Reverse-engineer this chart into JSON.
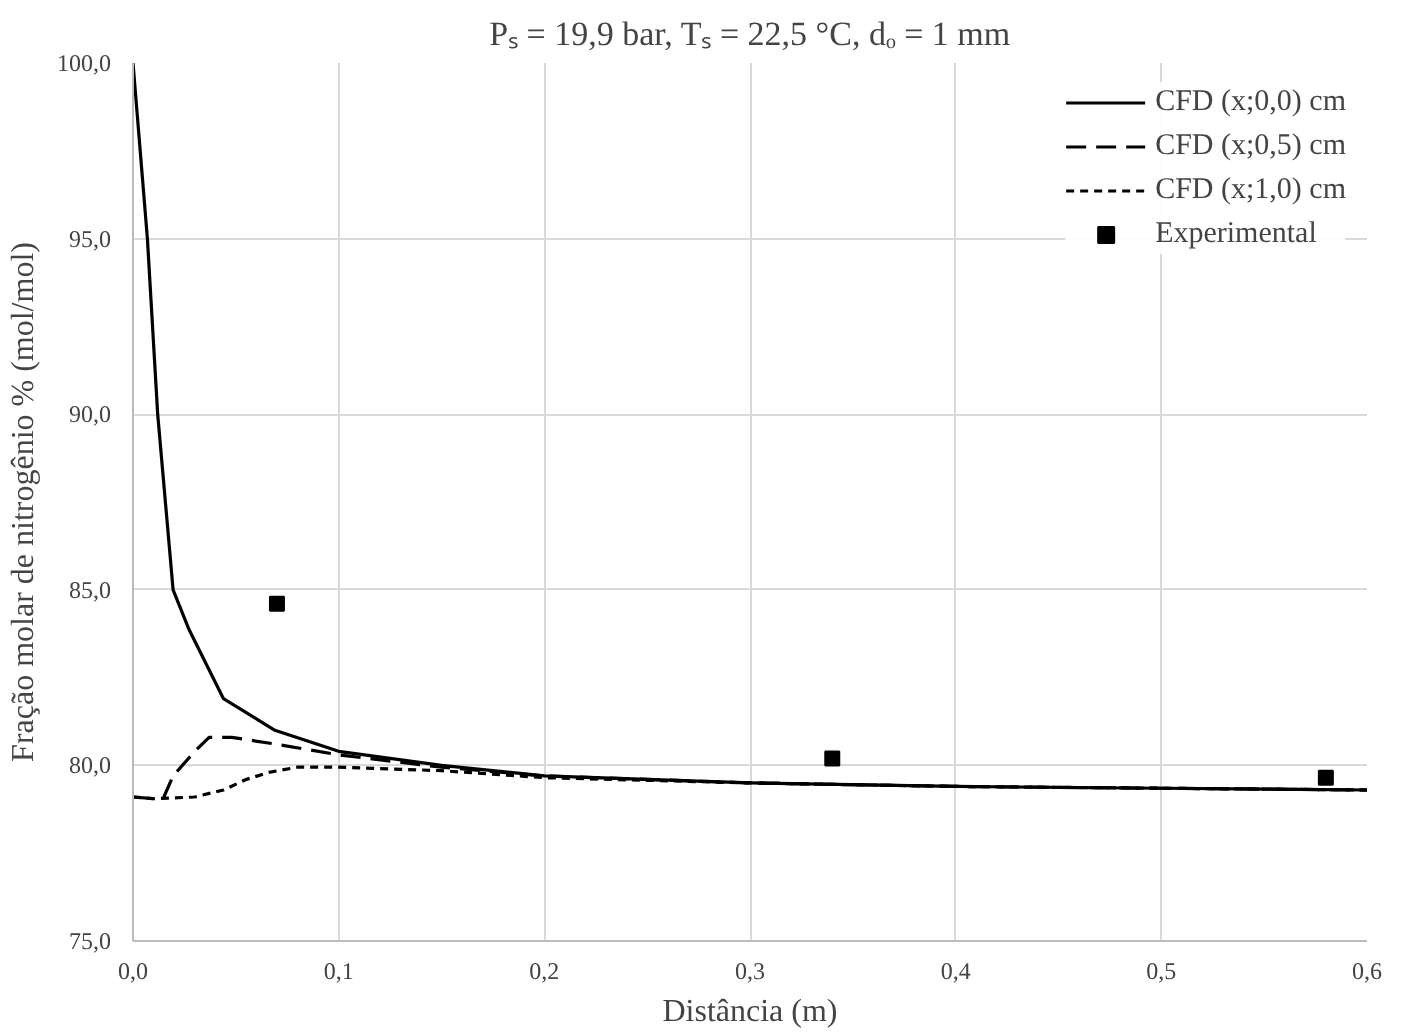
{
  "chart_data": {
    "type": "line",
    "title": "Pₛ = 19,9 bar, Tₛ = 22,5 °C, dₒ = 1 mm",
    "xlabel": "Distância (m)",
    "ylabel": "Fração molar de nitrogênio % (mol/mol)",
    "xlim": [
      0,
      0.6
    ],
    "ylim": [
      75,
      100
    ],
    "xticks": [
      {
        "value": 0,
        "label": "0,0"
      },
      {
        "value": 0.1,
        "label": "0,1"
      },
      {
        "value": 0.2,
        "label": "0,2"
      },
      {
        "value": 0.3,
        "label": "0,3"
      },
      {
        "value": 0.4,
        "label": "0,4"
      },
      {
        "value": 0.5,
        "label": "0,5"
      },
      {
        "value": 0.6,
        "label": "0,6"
      }
    ],
    "yticks": [
      {
        "value": 75,
        "label": "75,0"
      },
      {
        "value": 80,
        "label": "80,0"
      },
      {
        "value": 85,
        "label": "85,0"
      },
      {
        "value": 90,
        "label": "90,0"
      },
      {
        "value": 95,
        "label": "95,0"
      },
      {
        "value": 100,
        "label": "100,0"
      }
    ],
    "grid": true,
    "legend": "top right",
    "series": [
      {
        "name": "CFD (x;0,0) cm",
        "line_style": "solid",
        "color": "#000000",
        "x": [
          0,
          0.007,
          0.012,
          0.0195,
          0.027,
          0.044,
          0.069,
          0.1,
          0.15,
          0.2,
          0.3,
          0.4,
          0.5,
          0.6
        ],
        "values": [
          100,
          95.0,
          90.0,
          85.0,
          83.9,
          81.9,
          81.0,
          80.4,
          80.0,
          79.7,
          79.5,
          79.4,
          79.35,
          79.3
        ]
      },
      {
        "name": "CFD (x;0,5) cm",
        "line_style": "dashed",
        "color": "#000000",
        "x": [
          0,
          0.01,
          0.015,
          0.0195,
          0.03,
          0.037,
          0.048,
          0.07,
          0.1,
          0.15,
          0.2,
          0.3,
          0.4,
          0.5,
          0.6
        ],
        "values": [
          79.1,
          79.05,
          79.1,
          79.7,
          80.4,
          80.8,
          80.8,
          80.6,
          80.3,
          79.95,
          79.7,
          79.5,
          79.4,
          79.35,
          79.3
        ]
      },
      {
        "name": "CFD (x;1,0) cm",
        "line_style": "dotted",
        "color": "#000000",
        "x": [
          0,
          0.01,
          0.03,
          0.044,
          0.055,
          0.066,
          0.08,
          0.1,
          0.15,
          0.2,
          0.3,
          0.4,
          0.5,
          0.6
        ],
        "values": [
          79.1,
          79.05,
          79.1,
          79.3,
          79.6,
          79.8,
          79.95,
          79.95,
          79.85,
          79.65,
          79.5,
          79.4,
          79.35,
          79.3
        ]
      },
      {
        "name": "Experimental",
        "type": "scatter",
        "marker": "square",
        "color": "#000000",
        "x": [
          0.07,
          0.34,
          0.58
        ],
        "values": [
          84.6,
          80.2,
          79.65
        ]
      }
    ]
  }
}
